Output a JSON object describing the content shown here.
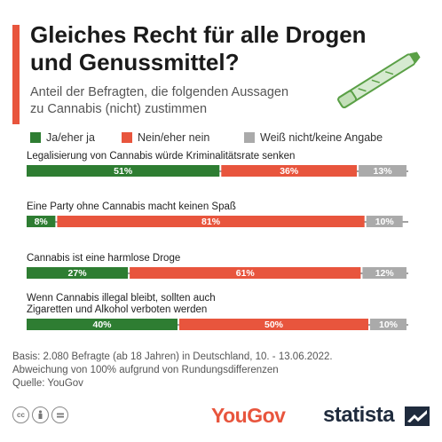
{
  "header": {
    "title_line1": "Gleiches Recht für alle Drogen",
    "title_line2": "und Genussmittel?",
    "subtitle_line1": "Anteil der Befragten, die folgenden Aussagen",
    "subtitle_line2": "zu Cannabis (nicht) zustimmen",
    "accent_color": "#e8553d"
  },
  "chart_data": {
    "type": "bar",
    "orientation": "horizontal-stacked",
    "categories": [
      "Legalisierung von Cannabis würde Kriminalitätsrate senken",
      "Eine Party ohne Cannabis macht keinen Spaß",
      "Cannabis ist eine harmlose Droge",
      "Wenn Cannabis illegal bleibt, sollten auch Zigaretten und Alkohol verboten werden"
    ],
    "category_lines": [
      [
        "Legalisierung von Cannabis würde Kriminalitätsrate senken"
      ],
      [
        "Eine Party ohne Cannabis macht keinen Spaß"
      ],
      [
        "Cannabis ist eine harmlose Droge"
      ],
      [
        "Wenn Cannabis illegal bleibt, sollten auch",
        "Zigaretten und Alkohol verboten werden"
      ]
    ],
    "series": [
      {
        "name": "Ja/eher ja",
        "color": "#2e7d32",
        "values": [
          51,
          8,
          27,
          40
        ]
      },
      {
        "name": "Nein/eher nein",
        "color": "#e8553d",
        "values": [
          36,
          81,
          61,
          50
        ]
      },
      {
        "name": "Weiß nicht/keine Angabe",
        "color": "#aaaaaa",
        "values": [
          13,
          10,
          12,
          10
        ]
      }
    ],
    "value_suffix": "%",
    "xlim": [
      0,
      100
    ]
  },
  "footer": {
    "note_line1": "Basis: 2.080 Befragte (ab 18 Jahren) in Deutschland, 10. - 13.06.2022.",
    "note_line2": "Abweichung von 100% aufgrund von Rundungsdifferenzen",
    "source": "Quelle: YouGov",
    "license_icons": [
      "cc-icon",
      "by-icon",
      "nd-icon"
    ],
    "source_brand": "YouGov",
    "brand": "statista"
  }
}
